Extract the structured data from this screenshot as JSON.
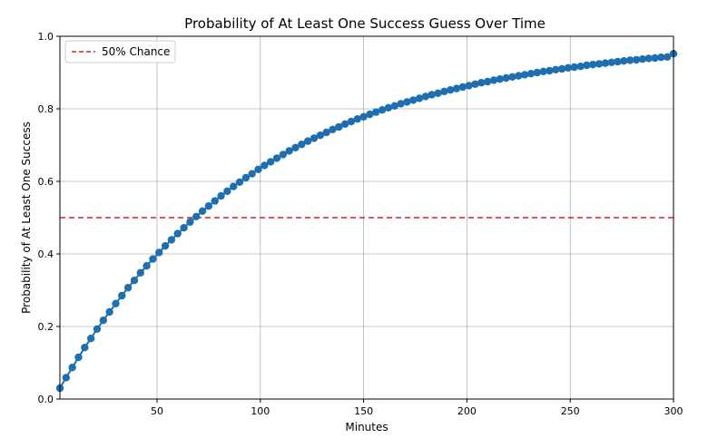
{
  "chart_data": {
    "type": "scatter",
    "title": "Probability of At Least One Success Guess Over Time",
    "xlabel": "Minutes",
    "ylabel": "Probability of At Least One Success",
    "xlim": [
      3,
      300
    ],
    "ylim": [
      0.0,
      1.0
    ],
    "grid": true,
    "legend_position": "top-left",
    "x_ticks": [
      50,
      100,
      150,
      200,
      250,
      300
    ],
    "y_ticks": [
      0.0,
      0.2,
      0.4,
      0.6,
      0.8,
      1.0
    ],
    "x_tick_labels": [
      "50",
      "100",
      "150",
      "200",
      "250",
      "300"
    ],
    "y_tick_labels": [
      "0.0",
      "0.2",
      "0.4",
      "0.6",
      "0.8",
      "1.0"
    ],
    "series": [
      {
        "color": "#1f6fb0",
        "marker": "circle",
        "line": true,
        "x": [
          3,
          6,
          9,
          12,
          15,
          18,
          21,
          24,
          27,
          30,
          33,
          36,
          39,
          42,
          45,
          48,
          51,
          54,
          57,
          60,
          63,
          66,
          69,
          72,
          75,
          78,
          81,
          84,
          87,
          90,
          93,
          96,
          99,
          102,
          105,
          108,
          111,
          114,
          117,
          120,
          123,
          126,
          129,
          132,
          135,
          138,
          141,
          144,
          147,
          150,
          153,
          156,
          159,
          162,
          165,
          168,
          171,
          174,
          177,
          180,
          183,
          186,
          189,
          192,
          195,
          198,
          201,
          204,
          207,
          210,
          213,
          216,
          219,
          222,
          225,
          228,
          231,
          234,
          237,
          240,
          243,
          246,
          249,
          252,
          255,
          258,
          261,
          264,
          267,
          270,
          273,
          276,
          279,
          282,
          285,
          288,
          291,
          294,
          297,
          300
        ],
        "y": [
          0.03,
          0.059,
          0.087,
          0.115,
          0.142,
          0.167,
          0.193,
          0.217,
          0.24,
          0.263,
          0.285,
          0.307,
          0.327,
          0.348,
          0.367,
          0.386,
          0.404,
          0.422,
          0.439,
          0.456,
          0.472,
          0.488,
          0.503,
          0.518,
          0.532,
          0.546,
          0.56,
          0.573,
          0.586,
          0.598,
          0.61,
          0.621,
          0.633,
          0.644,
          0.654,
          0.664,
          0.674,
          0.684,
          0.693,
          0.702,
          0.711,
          0.719,
          0.727,
          0.735,
          0.743,
          0.75,
          0.758,
          0.765,
          0.772,
          0.778,
          0.785,
          0.791,
          0.797,
          0.803,
          0.808,
          0.814,
          0.819,
          0.824,
          0.829,
          0.834,
          0.839,
          0.843,
          0.848,
          0.852,
          0.856,
          0.86,
          0.864,
          0.868,
          0.872,
          0.875,
          0.879,
          0.882,
          0.885,
          0.888,
          0.891,
          0.894,
          0.897,
          0.9,
          0.903,
          0.905,
          0.908,
          0.91,
          0.913,
          0.915,
          0.917,
          0.92,
          0.922,
          0.924,
          0.926,
          0.928,
          0.93,
          0.932,
          0.934,
          0.935,
          0.937,
          0.939,
          0.94,
          0.942,
          0.943,
          0.952
        ]
      }
    ],
    "reference_lines": [
      {
        "label": "50% Chance",
        "y": 0.5,
        "color": "#e31a1c",
        "style": "dashed"
      }
    ]
  }
}
